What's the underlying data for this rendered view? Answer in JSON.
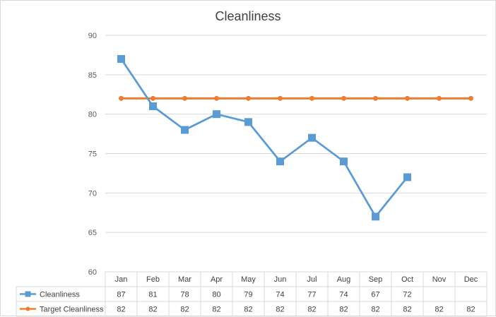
{
  "chart_data": {
    "type": "line",
    "title": "Cleanliness",
    "xlabel": "",
    "ylabel": "",
    "ylim": [
      60,
      90
    ],
    "y_ticks": [
      60,
      65,
      70,
      75,
      80,
      85,
      90
    ],
    "grid": true,
    "legend_placement": "data-table",
    "categories": [
      "Jan",
      "Feb",
      "Mar",
      "Apr",
      "May",
      "Jun",
      "Jul",
      "Aug",
      "Sep",
      "Oct",
      "Nov",
      "Dec"
    ],
    "series": [
      {
        "name": "Cleanliness",
        "color": "#5b9bd5",
        "marker": "square",
        "values": [
          87,
          81,
          78,
          80,
          79,
          74,
          77,
          74,
          67,
          72,
          null,
          null
        ]
      },
      {
        "name": "Target Cleanliness",
        "color": "#ed7d31",
        "marker": "circle",
        "values": [
          82,
          82,
          82,
          82,
          82,
          82,
          82,
          82,
          82,
          82,
          82,
          82
        ]
      }
    ]
  }
}
